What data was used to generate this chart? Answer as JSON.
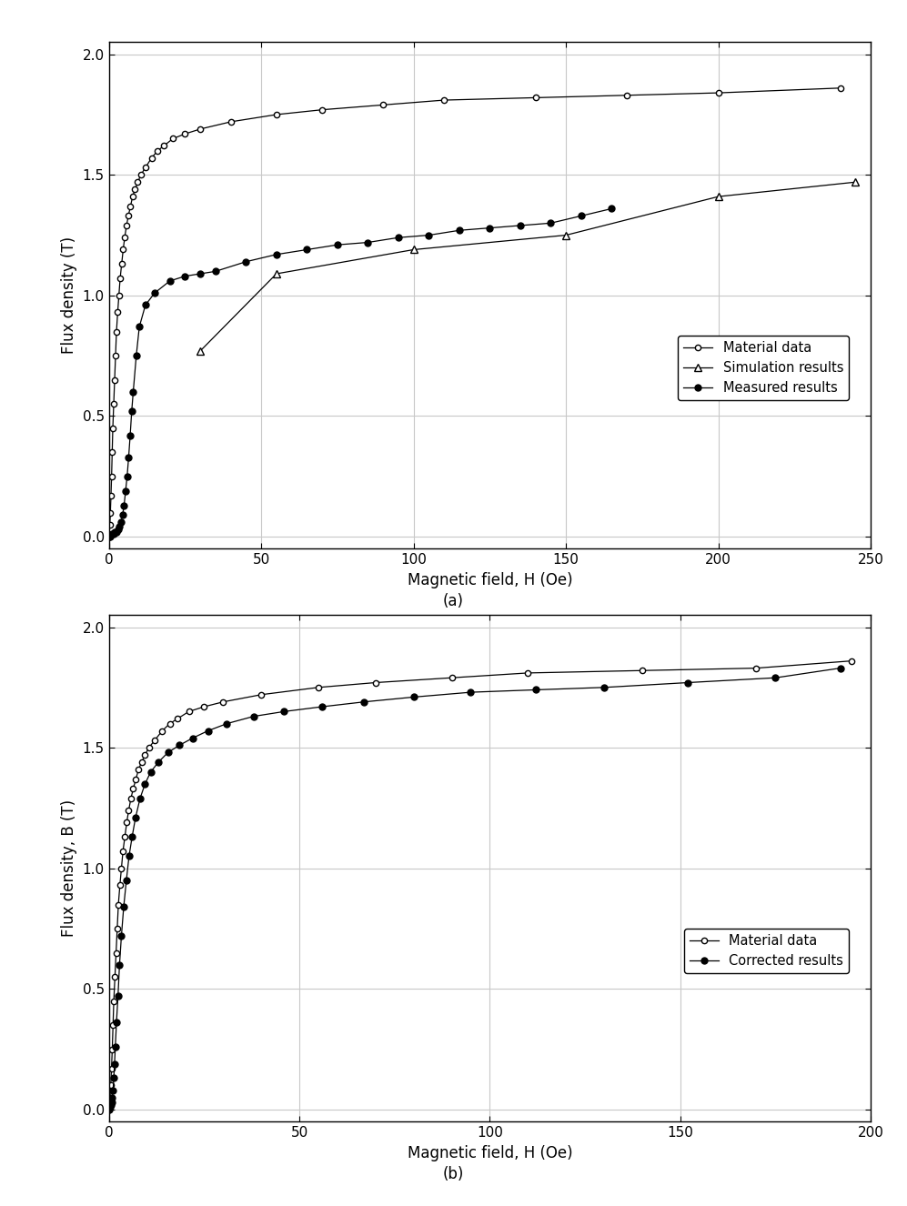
{
  "plot_a": {
    "xlabel": "Magnetic field, H (Oe)",
    "ylabel": "Flux density (T)",
    "xlim": [
      0,
      250
    ],
    "ylim": [
      -0.05,
      2.05
    ],
    "xticks": [
      0,
      50,
      100,
      150,
      200,
      250
    ],
    "yticks": [
      0.0,
      0.5,
      1.0,
      1.5,
      2.0
    ],
    "material_data": {
      "x": [
        0,
        0.3,
        0.5,
        0.7,
        0.9,
        1.1,
        1.3,
        1.6,
        1.9,
        2.2,
        2.5,
        2.9,
        3.3,
        3.7,
        4.2,
        4.7,
        5.2,
        5.8,
        6.4,
        7.1,
        7.8,
        8.6,
        9.5,
        10.5,
        12.0,
        14.0,
        16.0,
        18.0,
        21.0,
        25.0,
        30.0,
        40.0,
        55.0,
        70.0,
        90.0,
        110.0,
        140.0,
        170.0,
        200.0,
        240.0
      ],
      "y": [
        0,
        0.05,
        0.1,
        0.17,
        0.25,
        0.35,
        0.45,
        0.55,
        0.65,
        0.75,
        0.85,
        0.93,
        1.0,
        1.07,
        1.13,
        1.19,
        1.24,
        1.29,
        1.33,
        1.37,
        1.41,
        1.44,
        1.47,
        1.5,
        1.53,
        1.57,
        1.6,
        1.62,
        1.65,
        1.67,
        1.69,
        1.72,
        1.75,
        1.77,
        1.79,
        1.81,
        1.82,
        1.83,
        1.84,
        1.86
      ]
    },
    "simulation_data": {
      "x": [
        30,
        55,
        100,
        150,
        200,
        245
      ],
      "y": [
        0.77,
        1.09,
        1.19,
        1.25,
        1.41,
        1.47
      ]
    },
    "measured_data": {
      "x": [
        0,
        0.5,
        1.0,
        1.5,
        2.0,
        2.5,
        3.0,
        3.5,
        4.0,
        4.5,
        5.0,
        5.5,
        6.0,
        6.5,
        7.0,
        7.5,
        8.0,
        9.0,
        10.0,
        12.0,
        15.0,
        20.0,
        25.0,
        30.0,
        35.0,
        45.0,
        55.0,
        65.0,
        75.0,
        85.0,
        95.0,
        105.0,
        115.0,
        125.0,
        135.0,
        145.0,
        155.0,
        165.0
      ],
      "y": [
        0,
        0.0,
        0.01,
        0.01,
        0.02,
        0.02,
        0.03,
        0.04,
        0.06,
        0.09,
        0.13,
        0.19,
        0.25,
        0.33,
        0.42,
        0.52,
        0.6,
        0.75,
        0.87,
        0.96,
        1.01,
        1.06,
        1.08,
        1.09,
        1.1,
        1.14,
        1.17,
        1.19,
        1.21,
        1.22,
        1.24,
        1.25,
        1.27,
        1.28,
        1.29,
        1.3,
        1.33,
        1.36
      ]
    },
    "legend_labels": [
      "Material data",
      "Simulation results",
      "Measured results"
    ]
  },
  "plot_b": {
    "xlabel": "Magnetic field, H (Oe)",
    "ylabel": "Flux density, B (T)",
    "xlim": [
      0,
      200
    ],
    "ylim": [
      -0.05,
      2.05
    ],
    "xticks": [
      0,
      50,
      100,
      150,
      200
    ],
    "yticks": [
      0.0,
      0.5,
      1.0,
      1.5,
      2.0
    ],
    "material_data": {
      "x": [
        0,
        0.3,
        0.5,
        0.7,
        0.9,
        1.1,
        1.3,
        1.6,
        1.9,
        2.2,
        2.5,
        2.9,
        3.3,
        3.7,
        4.2,
        4.7,
        5.2,
        5.8,
        6.4,
        7.1,
        7.8,
        8.6,
        9.5,
        10.5,
        12.0,
        14.0,
        16.0,
        18.0,
        21.0,
        25.0,
        30.0,
        40.0,
        55.0,
        70.0,
        90.0,
        110.0,
        140.0,
        170.0,
        195.0
      ],
      "y": [
        0,
        0.05,
        0.1,
        0.17,
        0.25,
        0.35,
        0.45,
        0.55,
        0.65,
        0.75,
        0.85,
        0.93,
        1.0,
        1.07,
        1.13,
        1.19,
        1.24,
        1.29,
        1.33,
        1.37,
        1.41,
        1.44,
        1.47,
        1.5,
        1.53,
        1.57,
        1.6,
        1.62,
        1.65,
        1.67,
        1.69,
        1.72,
        1.75,
        1.77,
        1.79,
        1.81,
        1.82,
        1.83,
        1.86
      ]
    },
    "corrected_data": {
      "x": [
        0,
        0.3,
        0.5,
        0.7,
        0.9,
        1.1,
        1.3,
        1.5,
        1.7,
        2.0,
        2.4,
        2.8,
        3.3,
        3.9,
        4.6,
        5.3,
        6.1,
        7.0,
        8.2,
        9.5,
        11.0,
        13.0,
        15.5,
        18.5,
        22.0,
        26.0,
        31.0,
        38.0,
        46.0,
        56.0,
        67.0,
        80.0,
        95.0,
        112.0,
        130.0,
        152.0,
        175.0,
        192.0
      ],
      "y": [
        0,
        0.01,
        0.02,
        0.03,
        0.05,
        0.08,
        0.13,
        0.19,
        0.26,
        0.36,
        0.47,
        0.6,
        0.72,
        0.84,
        0.95,
        1.05,
        1.13,
        1.21,
        1.29,
        1.35,
        1.4,
        1.44,
        1.48,
        1.51,
        1.54,
        1.57,
        1.6,
        1.63,
        1.65,
        1.67,
        1.69,
        1.71,
        1.73,
        1.74,
        1.75,
        1.77,
        1.79,
        1.83
      ]
    },
    "legend_labels": [
      "Material data",
      "Corrected results"
    ]
  },
  "background_color": "#ffffff",
  "grid_color": "#c8c8c8",
  "label_a": "(a)",
  "label_b": "(b)"
}
